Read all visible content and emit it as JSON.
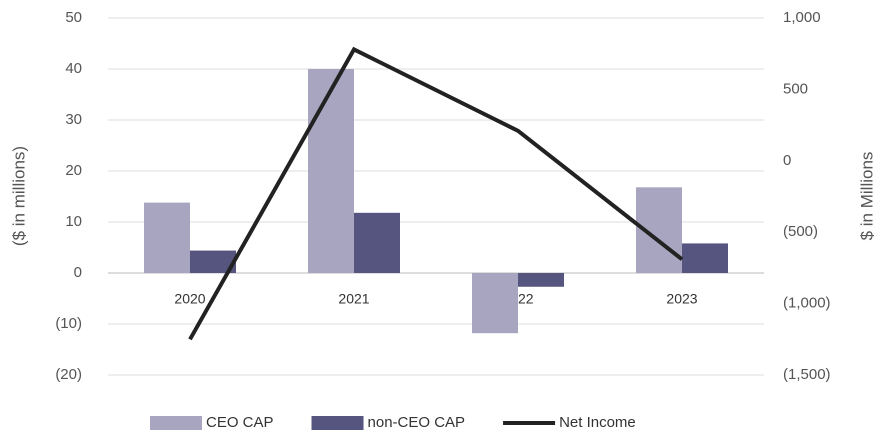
{
  "chart_data": {
    "type": "bar",
    "categories": [
      "2020",
      "2021",
      "2022",
      "2023"
    ],
    "series": [
      {
        "name": "CEO CAP",
        "color": "#a7a5bf",
        "values": [
          13.8,
          40,
          -11.8,
          16.8
        ]
      },
      {
        "name": "non-CEO CAP",
        "color": "#55557f",
        "values": [
          4.4,
          11.8,
          -2.7,
          5.8
        ]
      },
      {
        "name": "Net Income",
        "color": "#222222",
        "type": "line",
        "axis": "y2",
        "values": [
          -1250,
          780,
          210,
          -690
        ]
      }
    ],
    "ylabel": "($ in millions)",
    "y2label": "$ in Millions",
    "ylim": [
      -20,
      50
    ],
    "yticks": [
      {
        "value": -20,
        "label": "(20)"
      },
      {
        "value": -10,
        "label": "(10)"
      },
      0,
      10,
      20,
      30,
      40,
      50
    ],
    "y2lim": [
      -1500,
      1000
    ],
    "y2ticks": [
      {
        "value": -1500,
        "label": "(1,500)"
      },
      {
        "value": -1000,
        "label": "(1,000)"
      },
      {
        "value": -500,
        "label": "(500)"
      },
      0,
      500,
      {
        "value": 1000,
        "label": "1,000"
      }
    ],
    "grid": true,
    "legend": "bottom"
  }
}
